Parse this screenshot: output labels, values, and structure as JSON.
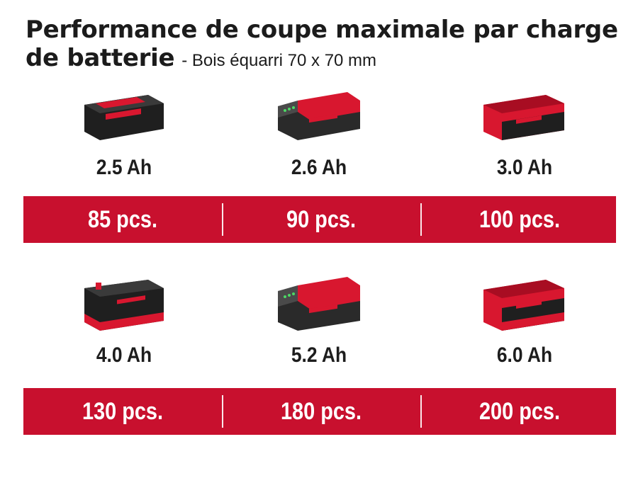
{
  "header": {
    "title": "Performance de coupe maximale par charge de batterie",
    "subtitle": "- Bois équarri 70 x 70 mm"
  },
  "colors": {
    "accent": "#c8102e",
    "battery_body": "#222222",
    "battery_cap": "#d8172f"
  },
  "rows": [
    {
      "batteries": [
        {
          "capacity": "2.5 Ah",
          "icon": "battery-2-5ah-icon",
          "value": "85 pcs."
        },
        {
          "capacity": "2.6 Ah",
          "icon": "battery-2-6ah-icon",
          "value": "90 pcs."
        },
        {
          "capacity": "3.0 Ah",
          "icon": "battery-3-0ah-icon",
          "value": "100 pcs."
        }
      ]
    },
    {
      "batteries": [
        {
          "capacity": "4.0 Ah",
          "icon": "battery-4-0ah-icon",
          "value": "130 pcs."
        },
        {
          "capacity": "5.2 Ah",
          "icon": "battery-5-2ah-icon",
          "value": "180 pcs."
        },
        {
          "capacity": "6.0 Ah",
          "icon": "battery-6-0ah-icon",
          "value": "200 pcs."
        }
      ]
    }
  ]
}
